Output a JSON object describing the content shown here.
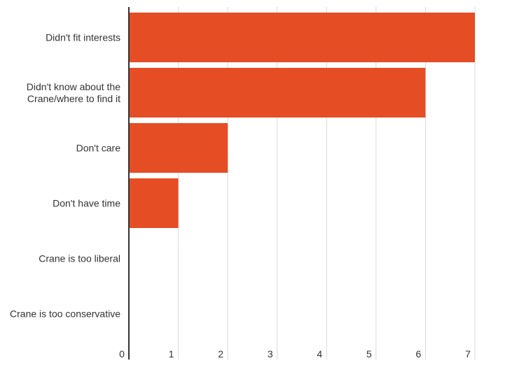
{
  "chart_data": {
    "type": "bar",
    "orientation": "horizontal",
    "title": "",
    "xlabel": "",
    "ylabel": "",
    "categories": [
      [
        "Didn't fit interests"
      ],
      [
        "Didn't know about the",
        "Crane/where to find it"
      ],
      [
        "Don't care"
      ],
      [
        "Don't have time"
      ],
      [
        "Crane is too liberal"
      ],
      [
        "Crane is too conservative"
      ]
    ],
    "values": [
      7,
      6,
      2,
      1,
      0,
      0
    ],
    "xlim": [
      0,
      7
    ],
    "xticks": [
      "0",
      "1",
      "2",
      "3",
      "4",
      "5",
      "6",
      "7"
    ],
    "grid": true,
    "legend": "none",
    "bar_color": "#E54D24",
    "grid_color": "#d9d9d9",
    "axis_color": "#333333"
  }
}
